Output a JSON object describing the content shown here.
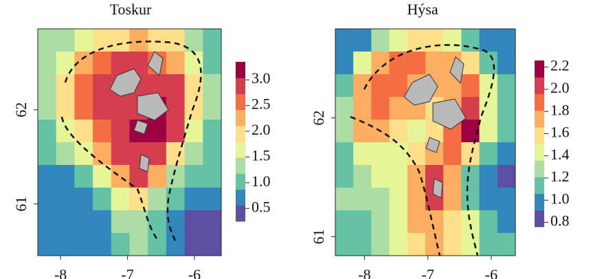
{
  "chart_data": [
    {
      "type": "heatmap",
      "title": "Toskur",
      "xlim": [
        -8.34,
        -5.6
      ],
      "ylim": [
        60.45,
        62.86
      ],
      "xticks": [
        -8,
        -7,
        -6
      ],
      "yticks": [
        61,
        62
      ],
      "clim": [
        0.25,
        3.35
      ],
      "cticks": [
        0.5,
        {
          "value": 1,
          "label": "1.0"
        },
        1.5,
        {
          "value": 2,
          "label": "2.0"
        },
        2.5,
        {
          "value": 3,
          "label": "3.0"
        }
      ],
      "colors": [
        "#5e4fa2",
        "#3288bd",
        "#66c2a5",
        "#abdda4",
        "#e6f598",
        "#fee08b",
        "#fdae61",
        "#f46d43",
        "#d53e4f",
        "#9e0142"
      ],
      "values": [
        [
          1.2,
          1.3,
          1.5,
          1.8,
          2.0,
          2.2,
          2.0,
          1.8,
          1.3,
          1.0
        ],
        [
          1.3,
          1.6,
          2.2,
          2.6,
          2.8,
          2.8,
          2.7,
          2.4,
          1.6,
          1.1
        ],
        [
          1.4,
          2.0,
          2.6,
          2.9,
          2.8,
          3.0,
          3.0,
          2.8,
          1.8,
          1.2
        ],
        [
          1.3,
          1.8,
          2.5,
          2.8,
          2.9,
          3.0,
          3.2,
          3.0,
          2.0,
          1.2
        ],
        [
          1.1,
          1.5,
          2.0,
          2.7,
          2.9,
          3.1,
          3.3,
          2.8,
          1.6,
          1.1
        ],
        [
          1.0,
          1.2,
          1.6,
          2.2,
          2.8,
          3.0,
          2.8,
          2.0,
          1.3,
          1.1
        ],
        [
          0.7,
          0.8,
          1.1,
          1.5,
          2.2,
          2.8,
          2.2,
          1.3,
          1.0,
          1.1
        ],
        [
          0.6,
          0.6,
          0.7,
          1.0,
          1.6,
          2.0,
          1.4,
          0.9,
          0.8,
          0.8
        ],
        [
          0.6,
          0.6,
          0.6,
          0.8,
          1.2,
          1.4,
          1.1,
          0.7,
          0.5,
          0.4
        ],
        [
          0.6,
          0.6,
          0.6,
          0.7,
          1.1,
          1.2,
          1.0,
          0.6,
          0.4,
          0.3
        ]
      ]
    },
    {
      "type": "heatmap",
      "title": "Hýsa",
      "xlim": [
        -8.46,
        -5.62
      ],
      "ylim": [
        60.84,
        62.75
      ],
      "xticks": [
        -8,
        -7,
        -6
      ],
      "yticks": [
        61,
        62
      ],
      "clim": [
        0.76,
        2.26
      ],
      "cticks": [
        0.8,
        {
          "value": 1,
          "label": "1.0"
        },
        1.2,
        1.4,
        1.6,
        1.8,
        {
          "value": 2,
          "label": "2.0"
        },
        2.2
      ],
      "colors": [
        "#5e4fa2",
        "#3288bd",
        "#66c2a5",
        "#abdda4",
        "#e6f598",
        "#fee08b",
        "#fdae61",
        "#f46d43",
        "#d53e4f",
        "#9e0142"
      ],
      "values": [
        [
          1.0,
          1.0,
          1.3,
          1.5,
          1.6,
          1.6,
          1.4,
          1.2,
          1.0,
          1.0
        ],
        [
          1.0,
          1.4,
          1.8,
          1.9,
          1.9,
          1.8,
          1.8,
          1.6,
          1.2,
          1.0
        ],
        [
          1.2,
          1.7,
          1.9,
          1.9,
          1.8,
          1.7,
          1.8,
          1.9,
          1.4,
          1.1
        ],
        [
          1.3,
          1.8,
          1.9,
          1.8,
          1.7,
          1.6,
          1.8,
          2.1,
          1.5,
          1.1
        ],
        [
          1.3,
          1.7,
          1.8,
          1.6,
          1.5,
          1.6,
          1.9,
          2.2,
          1.5,
          1.2
        ],
        [
          1.1,
          1.4,
          1.5,
          1.5,
          1.6,
          1.8,
          1.9,
          1.6,
          1.1,
          1.0
        ],
        [
          1.2,
          1.3,
          1.4,
          1.5,
          1.8,
          2.0,
          1.8,
          1.2,
          1.0,
          0.9
        ],
        [
          1.3,
          1.3,
          1.3,
          1.5,
          1.8,
          2.0,
          1.7,
          1.2,
          1.0,
          1.0
        ],
        [
          1.2,
          1.2,
          1.3,
          1.5,
          1.7,
          1.8,
          1.6,
          1.4,
          1.1,
          1.0
        ],
        [
          1.2,
          1.2,
          1.3,
          1.5,
          1.6,
          1.7,
          1.6,
          1.4,
          1.2,
          1.1
        ]
      ]
    }
  ]
}
